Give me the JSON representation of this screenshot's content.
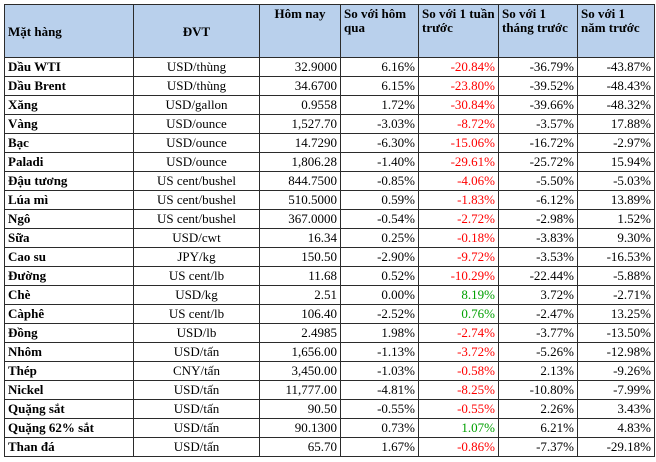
{
  "headers": {
    "name": "Mặt hàng",
    "unit": "ĐVT",
    "today": "Hôm nay",
    "vs_yesterday": "So với hôm qua",
    "vs_week": "So với 1 tuần trước",
    "vs_month": "So với 1 tháng trước",
    "vs_year": "So với 1 năm trước"
  },
  "rows": [
    {
      "name": "Dầu WTI",
      "unit": "USD/thùng",
      "today": "32.9000",
      "day": "6.16%",
      "week": "-20.84%",
      "month": "-36.79%",
      "year": "-43.87%"
    },
    {
      "name": "Dầu Brent",
      "unit": "USD/thùng",
      "today": "34.6700",
      "day": "6.15%",
      "week": "-23.80%",
      "month": "-39.52%",
      "year": "-48.43%"
    },
    {
      "name": "Xăng",
      "unit": "USD/gallon",
      "today": "0.9558",
      "day": "1.72%",
      "week": "-30.84%",
      "month": "-39.66%",
      "year": "-48.32%"
    },
    {
      "name": "Vàng",
      "unit": "USD/ounce",
      "today": "1,527.70",
      "day": "-3.03%",
      "week": "-8.72%",
      "month": "-3.57%",
      "year": "17.88%"
    },
    {
      "name": "Bạc",
      "unit": "USD/ounce",
      "today": "14.7290",
      "day": "-6.30%",
      "week": "-15.06%",
      "month": "-16.72%",
      "year": "-2.97%"
    },
    {
      "name": "Paladi",
      "unit": "USD/ounce",
      "today": "1,806.28",
      "day": "-1.40%",
      "week": "-29.61%",
      "month": "-25.72%",
      "year": "15.94%"
    },
    {
      "name": "Đậu tương",
      "unit": "US cent/bushel",
      "today": "844.7500",
      "day": "-0.85%",
      "week": "-4.06%",
      "month": "-5.50%",
      "year": "-5.03%"
    },
    {
      "name": "Lúa mì",
      "unit": "US cent/bushel",
      "today": "510.5000",
      "day": "0.59%",
      "week": "-1.83%",
      "month": "-6.12%",
      "year": "13.89%"
    },
    {
      "name": "Ngô",
      "unit": "US cent/bushel",
      "today": "367.0000",
      "day": "-0.54%",
      "week": "-2.72%",
      "month": "-2.98%",
      "year": "1.52%"
    },
    {
      "name": "Sữa",
      "unit": "USD/cwt",
      "today": "16.34",
      "day": "0.25%",
      "week": "-0.18%",
      "month": "-3.83%",
      "year": "9.30%"
    },
    {
      "name": "Cao su",
      "unit": "JPY/kg",
      "today": "150.50",
      "day": "-2.90%",
      "week": "-9.72%",
      "month": "-3.53%",
      "year": "-16.53%"
    },
    {
      "name": "Đường",
      "unit": "US cent/lb",
      "today": "11.68",
      "day": "0.52%",
      "week": "-10.29%",
      "month": "-22.44%",
      "year": "-5.88%"
    },
    {
      "name": "Chè",
      "unit": "USD/kg",
      "today": "2.51",
      "day": "0.00%",
      "week": "8.19%",
      "month": "3.72%",
      "year": "-2.71%"
    },
    {
      "name": "Càphê",
      "unit": "US cent/lb",
      "today": "106.40",
      "day": "-2.52%",
      "week": "0.76%",
      "month": "-2.47%",
      "year": "13.25%"
    },
    {
      "name": "Đồng",
      "unit": "USD/lb",
      "today": "2.4985",
      "day": "1.98%",
      "week": "-2.74%",
      "month": "-3.77%",
      "year": "-13.50%"
    },
    {
      "name": "Nhôm",
      "unit": "USD/tấn",
      "today": "1,656.00",
      "day": "-1.13%",
      "week": "-3.72%",
      "month": "-5.26%",
      "year": "-12.98%"
    },
    {
      "name": "Thép",
      "unit": "CNY/tấn",
      "today": "3,450.00",
      "day": "-1.03%",
      "week": "-0.58%",
      "month": "2.13%",
      "year": "-9.26%"
    },
    {
      "name": "Nickel",
      "unit": "USD/tấn",
      "today": "11,777.00",
      "day": "-4.81%",
      "week": "-8.25%",
      "month": "-10.80%",
      "year": "-7.99%"
    },
    {
      "name": "Quặng sắt",
      "unit": "USD/tấn",
      "today": "90.50",
      "day": "-0.55%",
      "week": "-0.55%",
      "month": "2.26%",
      "year": "3.43%"
    },
    {
      "name": "Quặng 62% sắt",
      "unit": "USD/tấn",
      "today": "90.1300",
      "day": "0.73%",
      "week": "1.07%",
      "month": "6.21%",
      "year": "4.83%"
    },
    {
      "name": "Than đá",
      "unit": "USD/tấn",
      "today": "65.70",
      "day": "1.67%",
      "week": "-0.86%",
      "month": "-7.37%",
      "year": "-29.18%"
    }
  ],
  "colors": {
    "header_bg": "#b9d0ec",
    "negative": "#ff0000",
    "positive": "#00a000"
  }
}
